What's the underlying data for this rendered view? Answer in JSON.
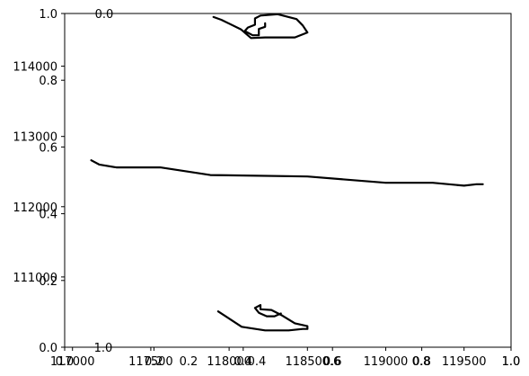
{
  "chart_data": {
    "type": "line",
    "title": "",
    "xlabel": "",
    "ylabel": "",
    "overlay_axes": {
      "xlim": [
        0,
        1
      ],
      "ylim": [
        0,
        1
      ],
      "xticks": [
        "0.0",
        "0.2",
        "0.4",
        "0.6",
        "0.8",
        "1.0"
      ],
      "yticks": [
        "0.0",
        "0.2",
        "0.4",
        "0.6",
        "0.8",
        "1.0"
      ]
    },
    "primary_axes": {
      "xlim": [
        116950,
        119800
      ],
      "ylim": [
        110000,
        114750
      ],
      "xticks": [
        "117000",
        "117500",
        "118000",
        "118500",
        "119000",
        "119500"
      ],
      "yticks": [
        "111000",
        "112000",
        "113000",
        "114000"
      ]
    },
    "extra_inner_labels": {
      "x_axis_near_origin": "1.0",
      "top_left": "0.0",
      "x_axis_secondary": [
        "0.2",
        "0.4",
        "0.6",
        "0.8",
        "1.0"
      ]
    },
    "grid": false,
    "series": [
      {
        "values": [
          [
            117900,
            114700
          ],
          [
            117950,
            114660
          ],
          [
            118075,
            114525
          ],
          [
            118140,
            114400
          ],
          [
            118140,
            114400
          ],
          [
            118230,
            114410
          ],
          [
            118420,
            114410
          ],
          [
            118500,
            114480
          ],
          [
            118470,
            114580
          ],
          [
            118430,
            114670
          ],
          [
            118310,
            114740
          ],
          [
            118200,
            114720
          ],
          [
            118165,
            114680
          ],
          [
            118165,
            114590
          ],
          [
            118120,
            114550
          ],
          [
            118100,
            114500
          ],
          [
            118150,
            114440
          ],
          [
            118190,
            114440
          ],
          [
            118190,
            114530
          ],
          [
            118230,
            114560
          ],
          [
            118230,
            114610
          ]
        ]
      },
      {
        "values": [
          [
            117120,
            112660
          ],
          [
            117170,
            112600
          ],
          [
            117280,
            112560
          ],
          [
            117560,
            112560
          ],
          [
            117880,
            112450
          ],
          [
            118500,
            112430
          ],
          [
            119000,
            112340
          ],
          [
            119300,
            112340
          ],
          [
            119500,
            112300
          ],
          [
            119580,
            112320
          ],
          [
            119620,
            112320
          ]
        ]
      },
      {
        "values": [
          [
            117930,
            110510
          ],
          [
            118080,
            110290
          ],
          [
            118230,
            110240
          ],
          [
            118380,
            110240
          ],
          [
            118470,
            110260
          ],
          [
            118500,
            110260
          ],
          [
            118500,
            110300
          ],
          [
            118420,
            110340
          ],
          [
            118340,
            110450
          ],
          [
            118270,
            110530
          ],
          [
            118200,
            110540
          ],
          [
            118200,
            110600
          ],
          [
            118165,
            110560
          ],
          [
            118190,
            110490
          ],
          [
            118240,
            110440
          ],
          [
            118290,
            110440
          ],
          [
            118330,
            110480
          ]
        ]
      }
    ]
  }
}
